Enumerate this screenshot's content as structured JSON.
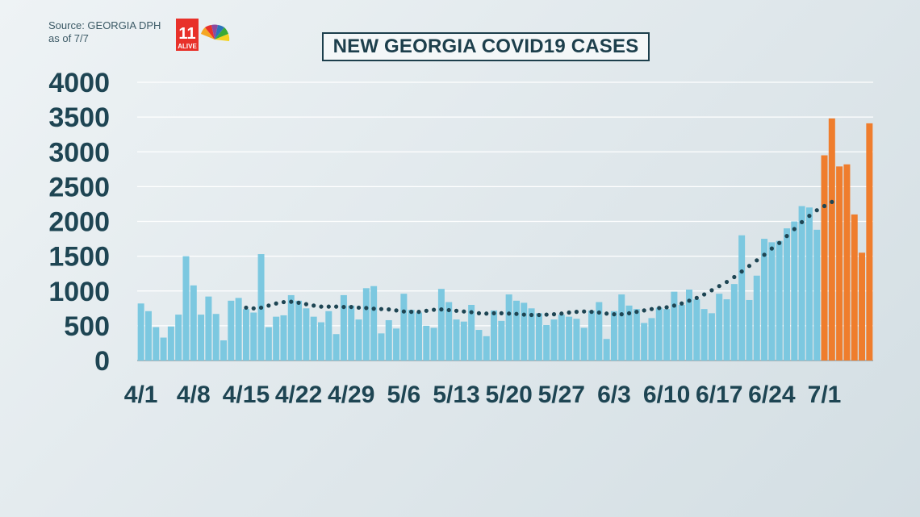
{
  "header": {
    "source_line1": "Source: GEORGIA DPH",
    "source_line2": "as of 7/7",
    "title": "NEW GEORGIA COVID19 CASES"
  },
  "logo": {
    "station": "ALIVE",
    "number": "11"
  },
  "colors": {
    "bar_reported": "#7cc8e0",
    "bar_recent": "#ef7d2d",
    "moving_average": "#1e4553",
    "axis_text": "#1e4553",
    "title_border": "#1d3f4c"
  },
  "chart_data": {
    "type": "bar",
    "title": "NEW GEORGIA COVID19 CASES",
    "xlabel": "",
    "ylabel": "",
    "ylim": [
      0,
      4000
    ],
    "yticks": [
      0,
      500,
      1000,
      1500,
      2000,
      2500,
      3000,
      3500,
      4000
    ],
    "xtick_labels": [
      "4/1",
      "4/8",
      "4/15",
      "4/22",
      "4/29",
      "5/6",
      "5/13",
      "5/20",
      "5/27",
      "6/3",
      "6/10",
      "6/17",
      "6/24",
      "7/1"
    ],
    "xtick_label_indices": [
      0,
      7,
      14,
      21,
      28,
      35,
      42,
      49,
      56,
      63,
      70,
      77,
      84,
      91
    ],
    "grid": true,
    "legend": "none",
    "series": [
      {
        "values": [
          820,
          710,
          480,
          330,
          490,
          660,
          1500,
          1080,
          660,
          920,
          670,
          290,
          860,
          900,
          740,
          690,
          1530,
          480,
          630,
          650,
          940,
          860,
          750,
          630,
          550,
          710,
          380,
          940,
          790,
          590,
          1040,
          1070,
          390,
          580,
          460,
          960,
          730,
          690,
          500,
          470,
          1030,
          840,
          590,
          560,
          800,
          440,
          350,
          720,
          570,
          950,
          860,
          830,
          750,
          680,
          510,
          590,
          660,
          630,
          600,
          470,
          720,
          840,
          310,
          710,
          950,
          790,
          740,
          540,
          610,
          760,
          740,
          990,
          800,
          1020,
          880,
          740,
          680,
          960,
          880,
          1100,
          1800,
          870,
          1220,
          1750,
          1700,
          1720,
          1900,
          2000,
          2220,
          2200,
          1880
        ]
      },
      {
        "start_index": 91,
        "values": [
          2950,
          3480,
          2790,
          2820,
          2100,
          1550,
          3410
        ]
      }
    ],
    "moving_average": {
      "start_index": 14,
      "values": [
        760,
        750,
        760,
        790,
        820,
        840,
        845,
        830,
        810,
        790,
        775,
        775,
        775,
        770,
        770,
        760,
        755,
        745,
        740,
        735,
        720,
        705,
        700,
        700,
        715,
        730,
        735,
        725,
        715,
        705,
        695,
        680,
        675,
        680,
        680,
        675,
        670,
        660,
        655,
        655,
        660,
        665,
        675,
        690,
        700,
        705,
        700,
        690,
        675,
        665,
        665,
        680,
        700,
        720,
        740,
        755,
        765,
        790,
        820,
        860,
        900,
        950,
        1010,
        1070,
        1130,
        1200,
        1280,
        1360,
        1440,
        1520,
        1610,
        1690,
        1790,
        1890,
        1990,
        2080,
        2160,
        2220,
        2280
      ]
    }
  }
}
